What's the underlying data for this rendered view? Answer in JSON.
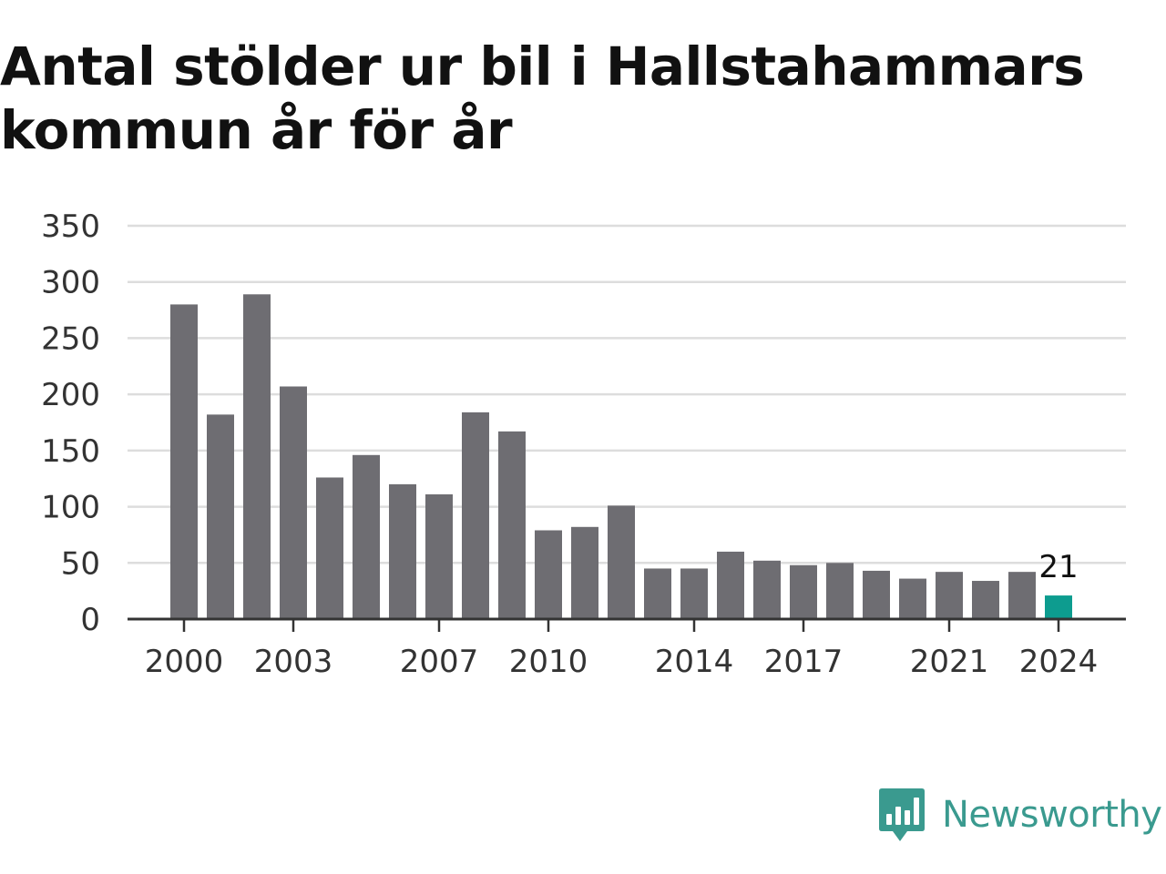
{
  "title": "Antal stölder ur bil i Hallstahammars kommun år för år",
  "brand": {
    "name": "Newsworthy",
    "icon": "newsworthy-logo-icon",
    "color": "#3a9a8f"
  },
  "colors": {
    "bar": "#6e6d72",
    "highlight": "#0d9c8f",
    "grid": "#dddddd",
    "axis": "#333333"
  },
  "chart_data": {
    "type": "bar",
    "title": "Antal stölder ur bil i Hallstahammars kommun år för år",
    "xlabel": "",
    "ylabel": "",
    "ylim": [
      0,
      350
    ],
    "yticks": [
      0,
      50,
      100,
      150,
      200,
      250,
      300,
      350
    ],
    "grid": true,
    "categories": [
      "2000",
      "2001",
      "2002",
      "2003",
      "2004",
      "2005",
      "2006",
      "2007",
      "2008",
      "2009",
      "2010",
      "2011",
      "2012",
      "2013",
      "2014",
      "2015",
      "2016",
      "2017",
      "2018",
      "2019",
      "2020",
      "2021",
      "2022",
      "2023",
      "2024"
    ],
    "xtick_labels": [
      "2000",
      "2003",
      "2007",
      "2010",
      "2014",
      "2017",
      "2021",
      "2024"
    ],
    "values": [
      280,
      182,
      289,
      207,
      126,
      146,
      120,
      111,
      184,
      167,
      79,
      82,
      101,
      45,
      45,
      60,
      52,
      48,
      50,
      43,
      36,
      42,
      34,
      42,
      21
    ],
    "highlight": {
      "category": "2024",
      "value": 21,
      "label": "21"
    }
  }
}
